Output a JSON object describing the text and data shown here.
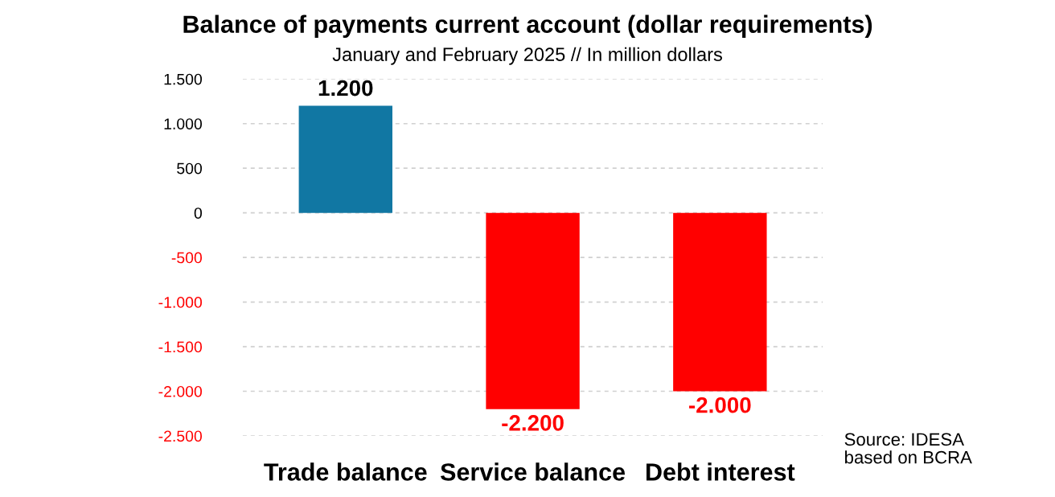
{
  "chart_data": {
    "type": "bar",
    "title": "Balance of payments current account (dollar requirements)",
    "subtitle": "January and February 2025 // In million dollars",
    "categories": [
      "Trade balance",
      "Service balance",
      "Debt interest"
    ],
    "values": [
      1200,
      -2200,
      -2000
    ],
    "colors": [
      "#1177a3",
      "#ff0000",
      "#ff0000"
    ],
    "value_labels": [
      "1.200",
      "-2.200",
      "-2.000"
    ],
    "ylim": [
      -2500,
      1500
    ],
    "yticks": [
      {
        "value": -2500,
        "label": "-2.500"
      },
      {
        "value": -2000,
        "label": "-2.000"
      },
      {
        "value": -1500,
        "label": "-1.500"
      },
      {
        "value": -1000,
        "label": "-1.000"
      },
      {
        "value": -500,
        "label": "-500"
      },
      0,
      500,
      {
        "value": 1000,
        "label": "1.000"
      },
      {
        "value": 1500,
        "label": "1.500"
      }
    ],
    "grid": "y",
    "annotations": [
      "Source: IDESA\nbased on BCRA"
    ]
  }
}
